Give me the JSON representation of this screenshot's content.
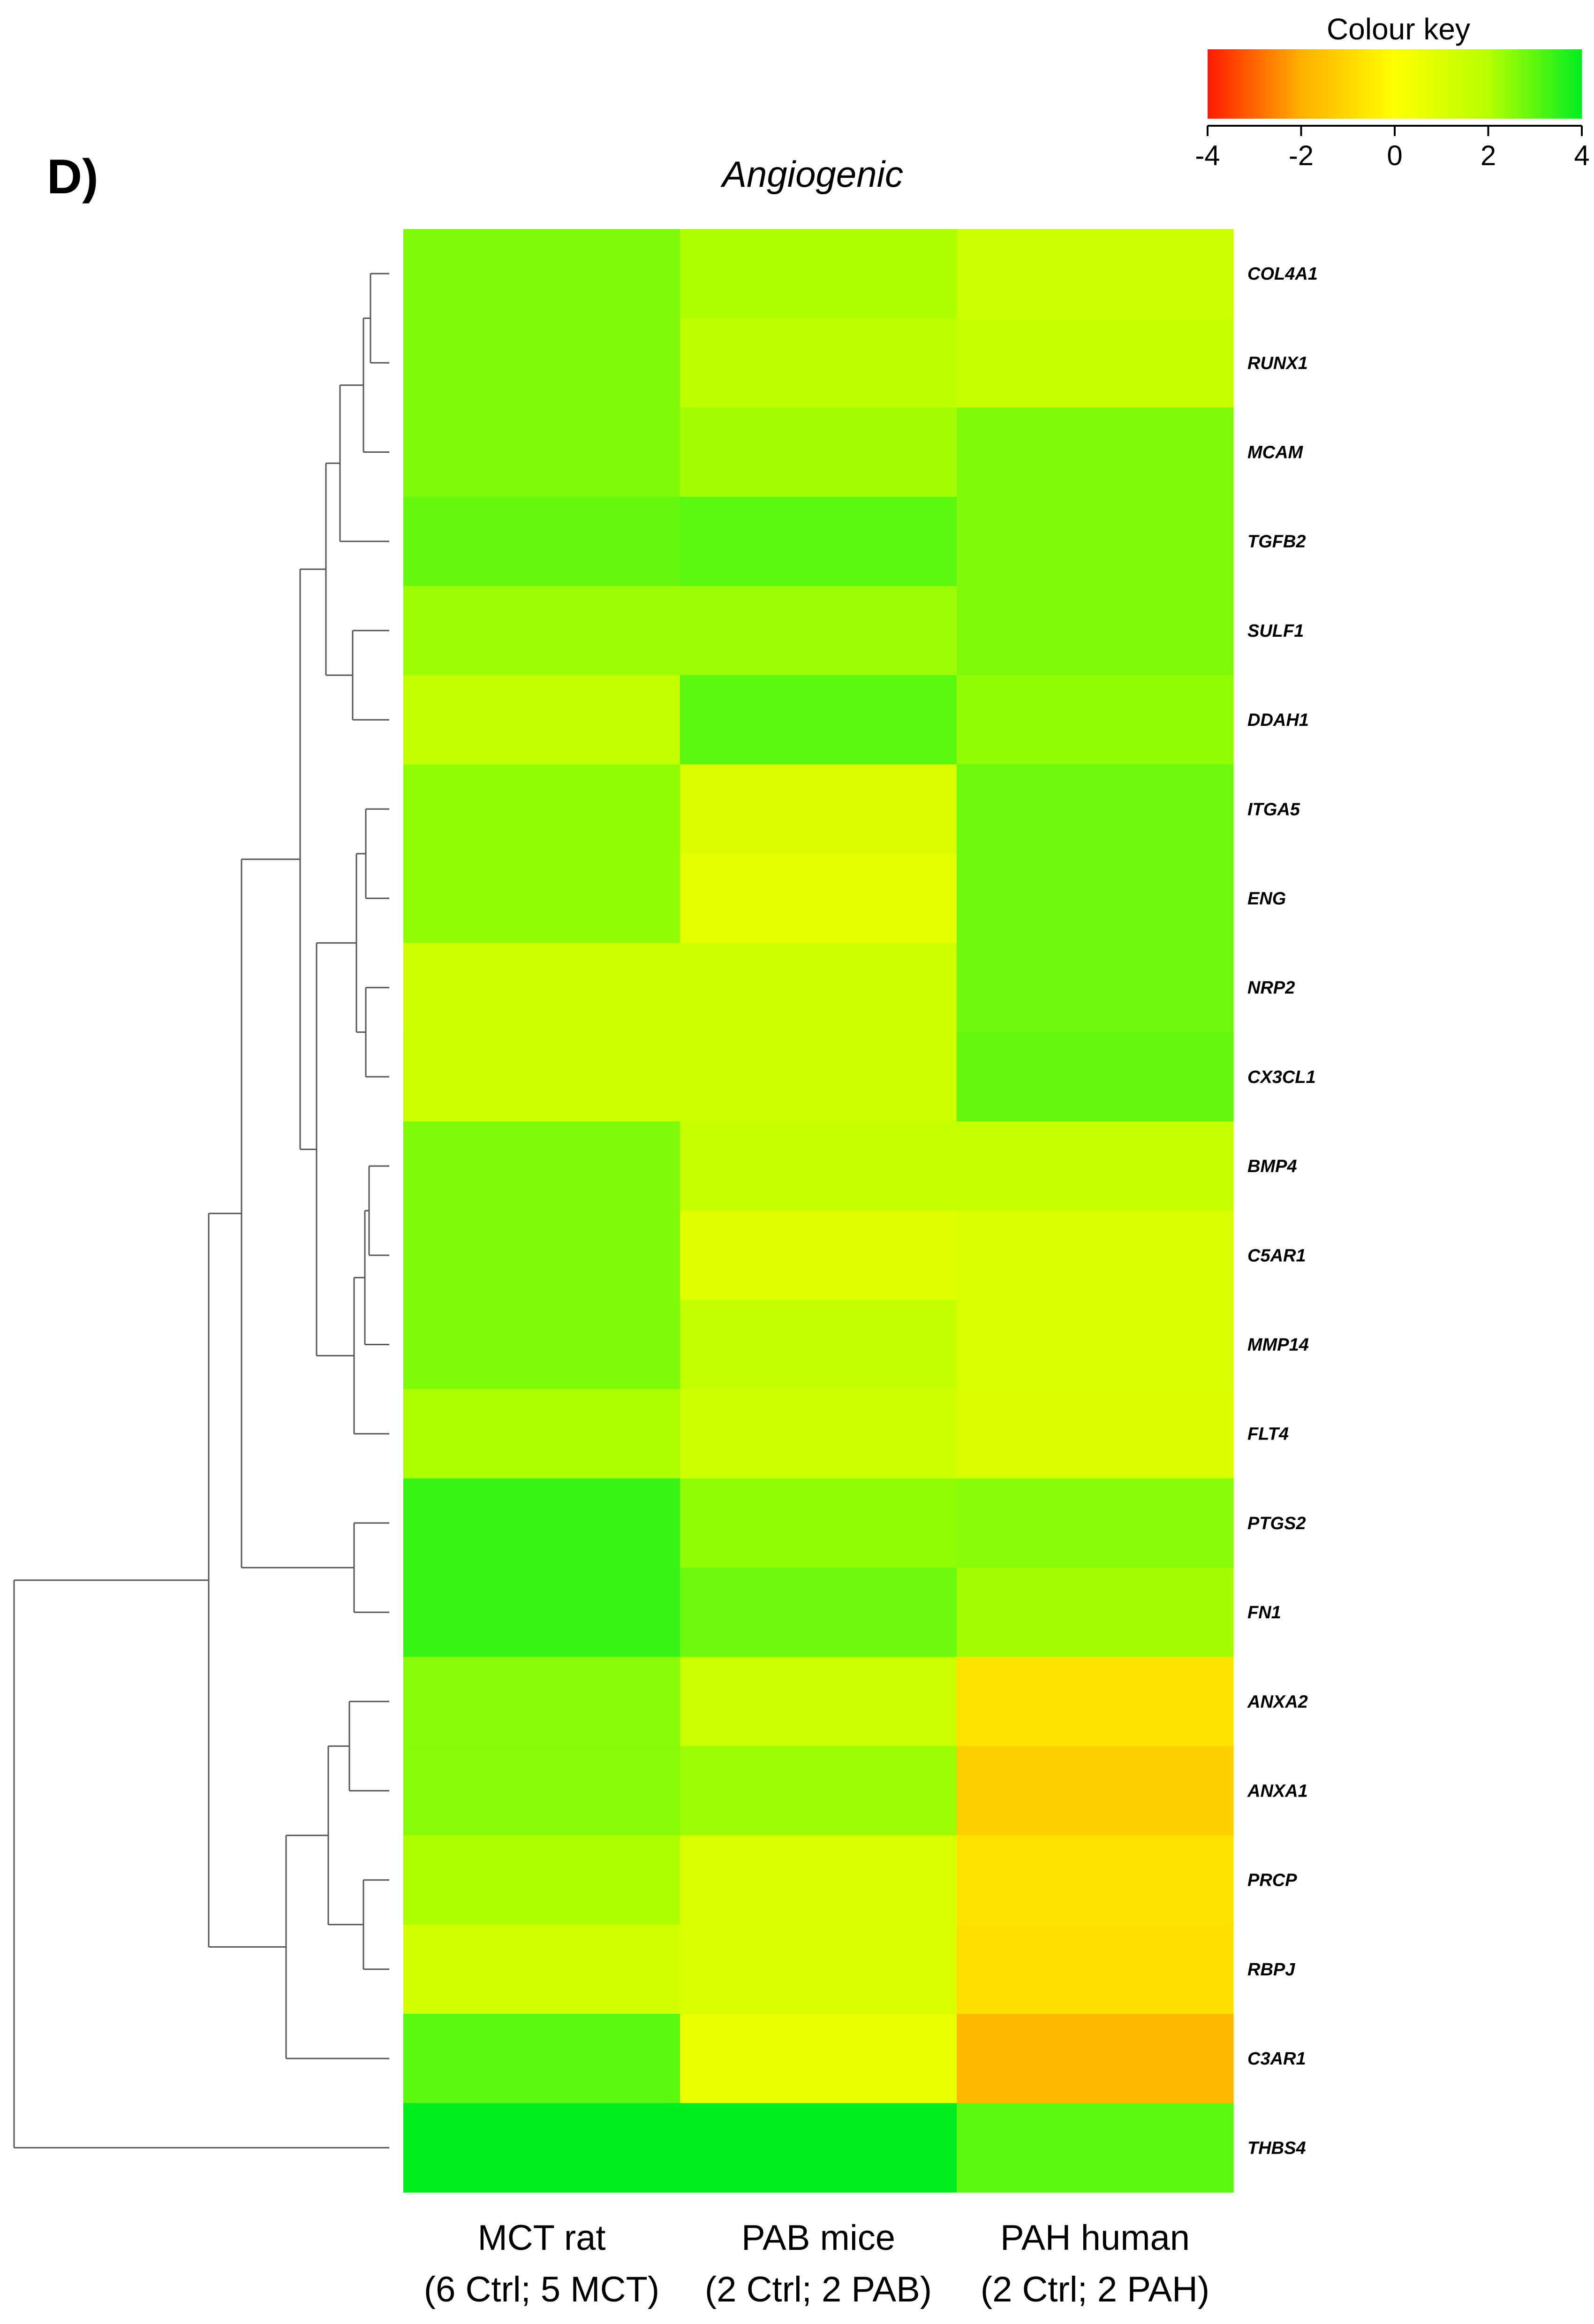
{
  "panel_label": "D)",
  "chart_data": {
    "type": "heatmap",
    "title": "Angiogenic",
    "columns": [
      {
        "line1": "MCT rat",
        "line2": "(6 Ctrl; 5 MCT)"
      },
      {
        "line1": "PAB mice",
        "line2": "(2 Ctrl; 2 PAB)"
      },
      {
        "line1": "PAH human",
        "line2": "(2 Ctrl; 2 PAH)"
      }
    ],
    "rows": [
      "COL4A1",
      "RUNX1",
      "MCAM",
      "TGFB2",
      "SULF1",
      "DDAH1",
      "ITGA5",
      "ENG",
      "NRP2",
      "CX3CL1",
      "BMP4",
      "C5AR1",
      "MMP14",
      "FLT4",
      "PTGS2",
      "FN1",
      "ANXA2",
      "ANXA1",
      "PRCP",
      "RBPJ",
      "C3AR1",
      "THBS4"
    ],
    "values": [
      [
        2.6,
        2.1,
        1.5
      ],
      [
        2.6,
        1.8,
        1.6
      ],
      [
        2.6,
        2.2,
        2.6
      ],
      [
        2.9,
        3.0,
        2.6
      ],
      [
        2.3,
        2.3,
        2.6
      ],
      [
        1.7,
        3.0,
        2.4
      ],
      [
        2.4,
        1.0,
        2.8
      ],
      [
        2.4,
        0.7,
        2.8
      ],
      [
        1.3,
        1.3,
        2.8
      ],
      [
        1.4,
        1.3,
        2.9
      ],
      [
        2.6,
        1.6,
        1.6
      ],
      [
        2.6,
        0.9,
        1.1
      ],
      [
        2.6,
        1.7,
        1.1
      ],
      [
        2.1,
        1.4,
        1.0
      ],
      [
        3.4,
        2.4,
        2.5
      ],
      [
        3.4,
        2.8,
        2.2
      ],
      [
        2.5,
        1.5,
        -0.7
      ],
      [
        2.5,
        2.3,
        -1.2
      ],
      [
        2.1,
        1.1,
        -0.7
      ],
      [
        1.2,
        1.1,
        -0.8
      ],
      [
        3.0,
        0.6,
        -1.8
      ],
      [
        4.0,
        4.0,
        3.0
      ]
    ],
    "color_key": {
      "title": "Colour key",
      "ticks": [
        -4,
        -2,
        0,
        2,
        4
      ],
      "tick_labels": [
        "-4",
        "-2",
        "0",
        "2",
        "4"
      ],
      "range": [
        -4,
        4
      ],
      "colors": [
        "#ff1a00",
        "#ffb000",
        "#ffff00",
        "#b7ff00",
        "#00ee20"
      ]
    },
    "dendrogram": "row clustering tree on left"
  }
}
